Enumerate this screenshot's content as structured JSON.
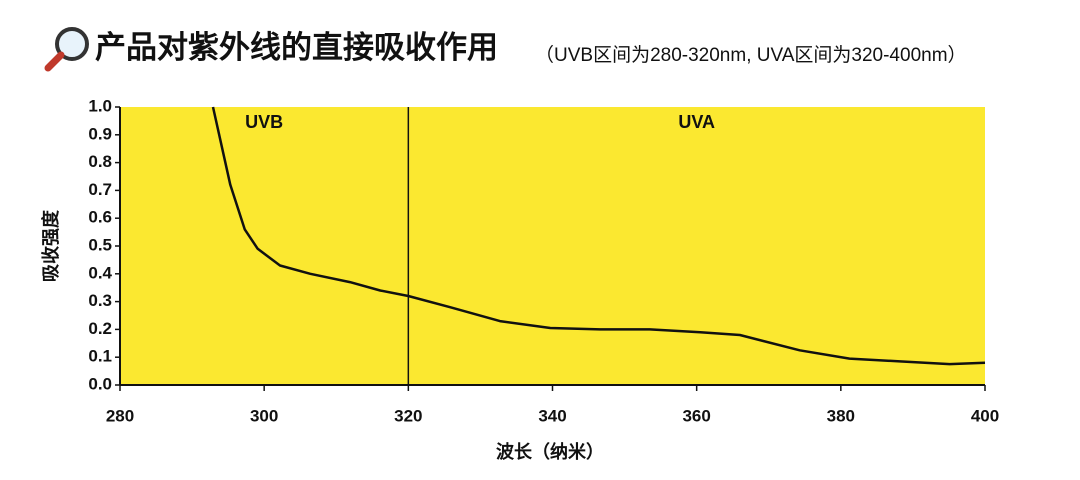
{
  "chart_data": {
    "type": "line",
    "title": "产品对紫外线的直接吸收作用",
    "subtitle": "（UVB区间为280-320nm, UVA区间为320-400nm）",
    "x_label": "波长（纳米）",
    "y_label": "吸收强度",
    "annotations": [
      "UVB",
      "UVA"
    ],
    "vlines": [
      320
    ],
    "x": [
      292.9,
      295.3,
      297.3,
      299.1,
      302.2,
      306.4,
      311.9,
      316.1,
      320,
      325.8,
      332.7,
      339.7,
      346.6,
      353.5,
      360.5,
      366,
      374.3,
      381.2,
      388.2,
      395.1,
      400
    ],
    "values": [
      1.0,
      0.72,
      0.56,
      0.49,
      0.43,
      0.4,
      0.37,
      0.34,
      0.32,
      0.28,
      0.23,
      0.205,
      0.2,
      0.2,
      0.19,
      0.18,
      0.125,
      0.095,
      0.085,
      0.075,
      0.08
    ],
    "color": "#111111",
    "background": "#fbe830",
    "xlim": [
      280,
      400
    ],
    "xticks": [
      280,
      300,
      320,
      340,
      360,
      380,
      400
    ],
    "ylim": [
      0,
      1
    ],
    "yticks": [
      {
        "value": 0,
        "label": "0.0"
      },
      0.1,
      0.2,
      0.3,
      0.4,
      0.5,
      0.6,
      0.7,
      0.8,
      0.9,
      {
        "value": 1,
        "label": "1.0"
      }
    ]
  }
}
